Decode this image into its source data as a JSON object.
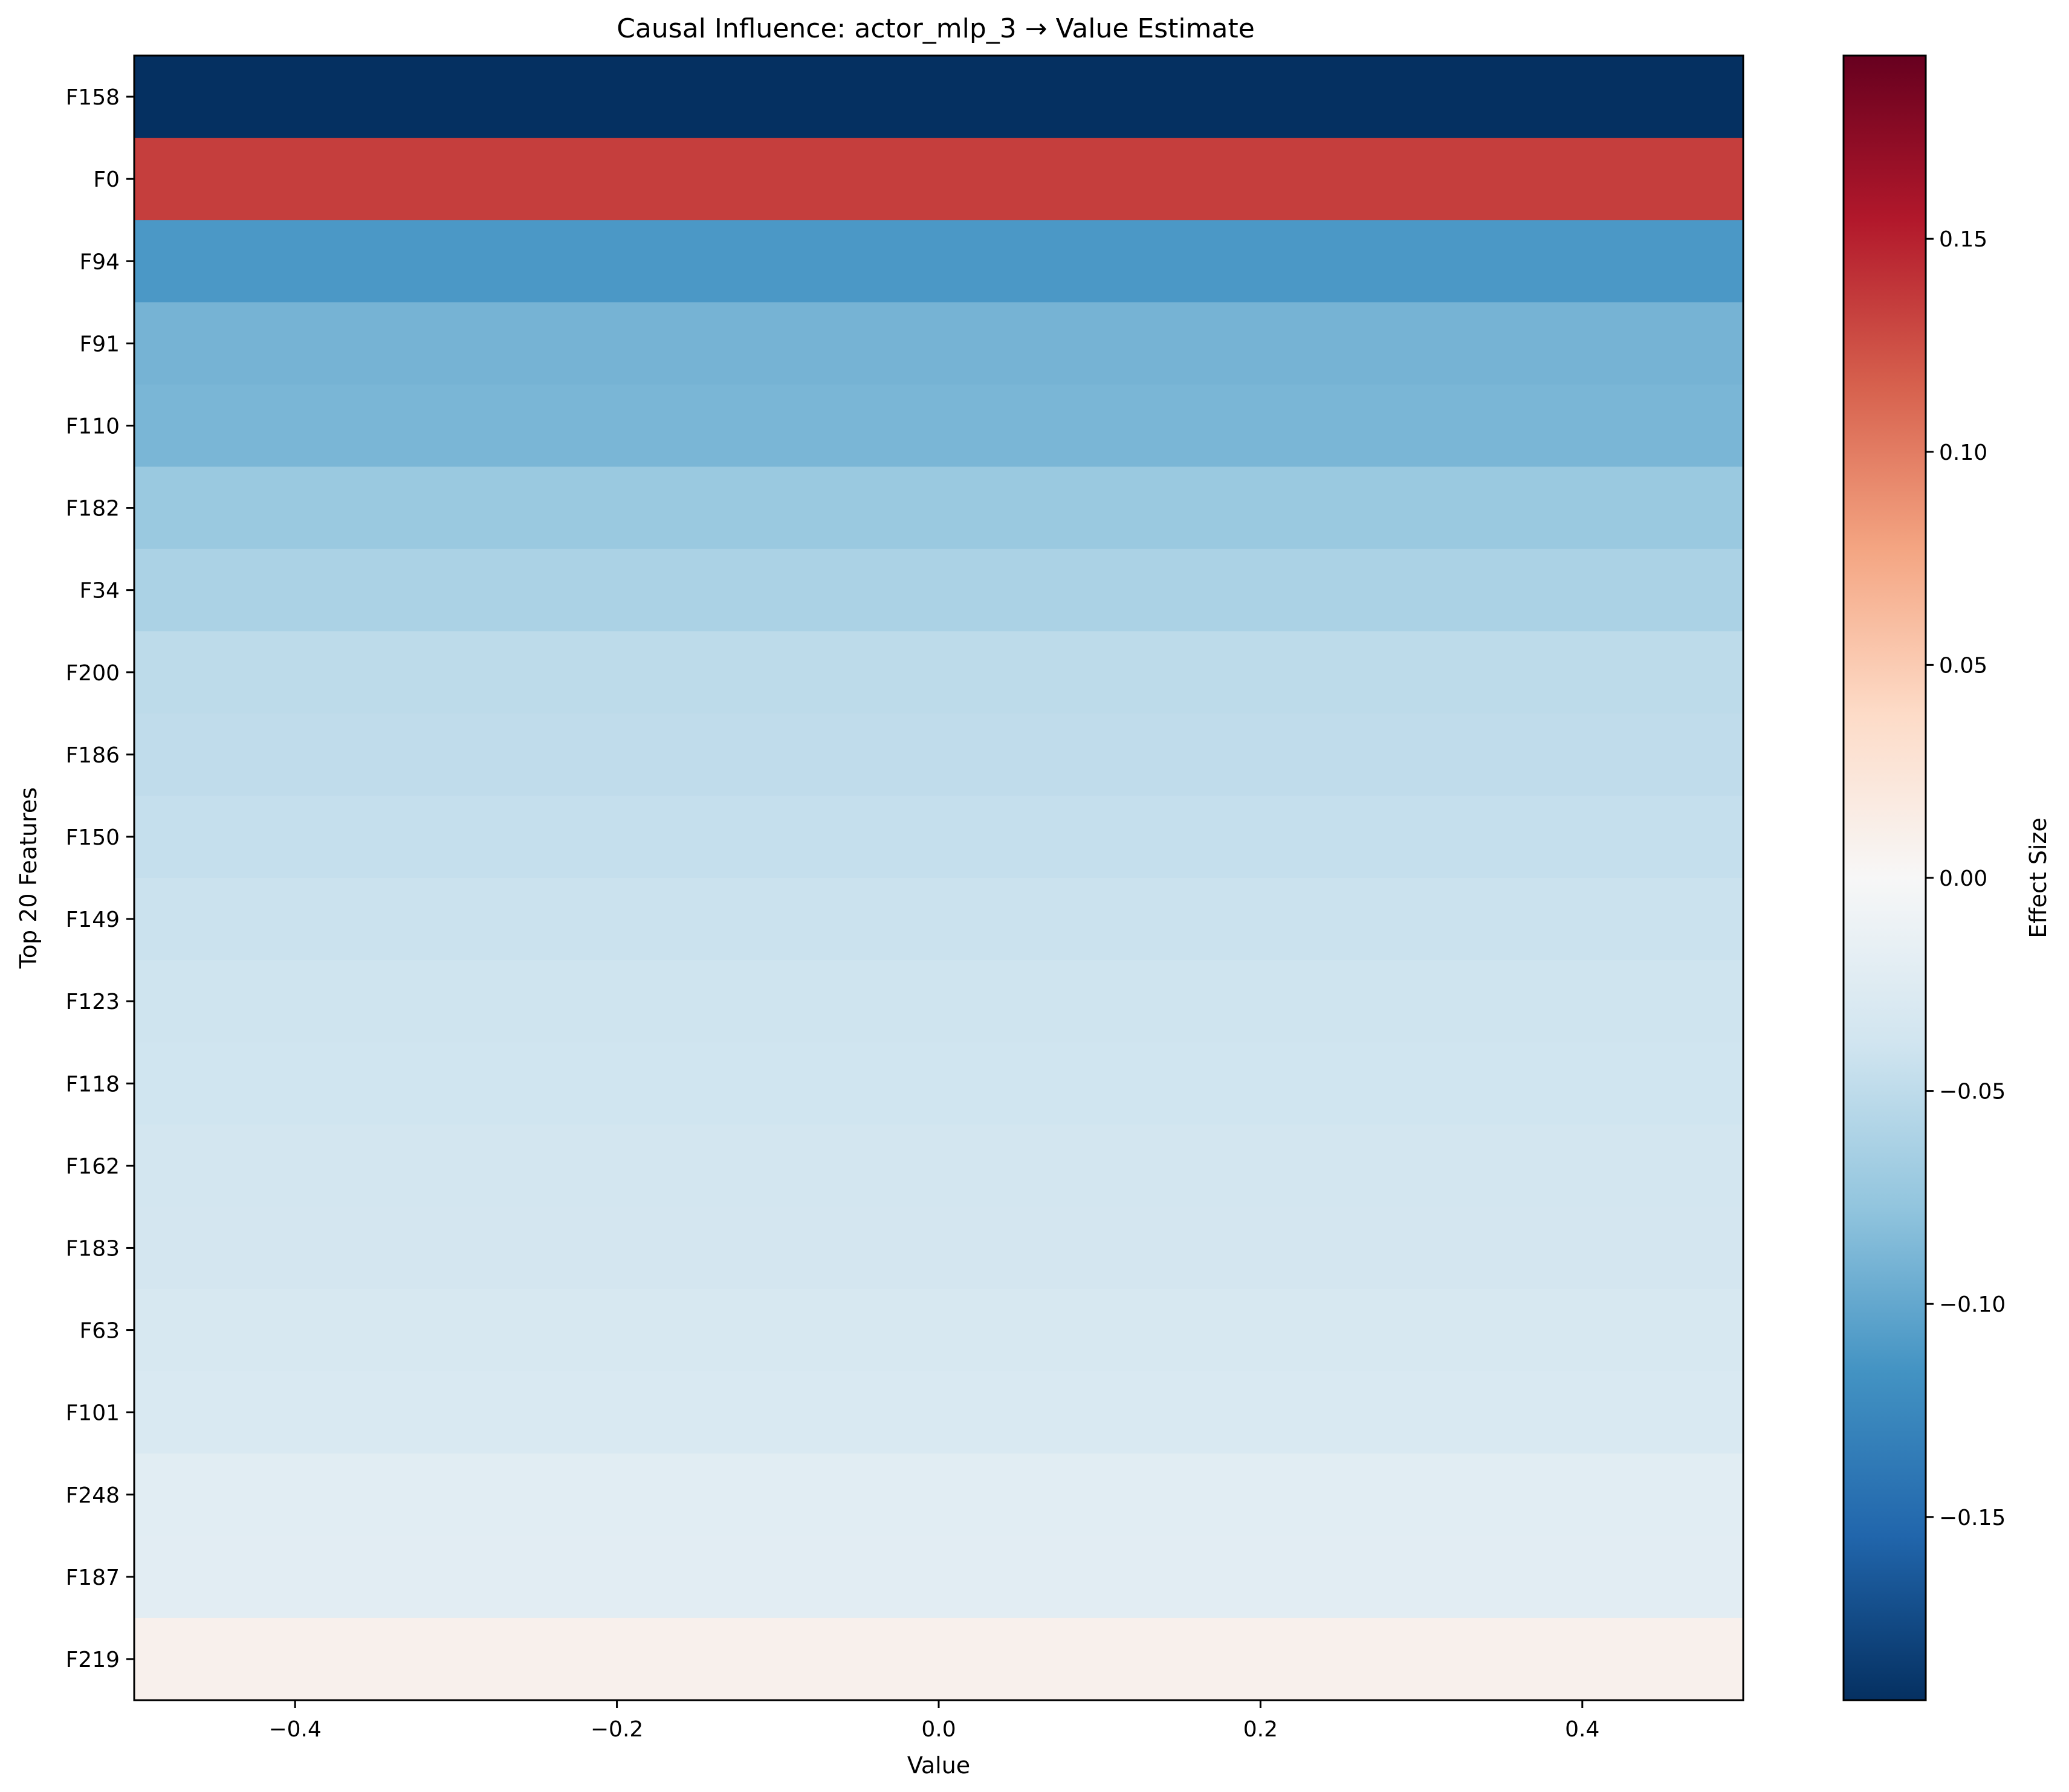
{
  "chart_data": {
    "type": "heatmap",
    "title": "Causal Influence: actor_mlp_3 → Value Estimate",
    "xlabel": "Value",
    "ylabel": "Top 20 Features",
    "xlim": [
      -0.5,
      0.5
    ],
    "x_ticks": [
      -0.4,
      -0.2,
      0.0,
      0.2,
      0.4
    ],
    "x_tick_labels": [
      "−0.4",
      "−0.2",
      "0.0",
      "0.2",
      "0.4"
    ],
    "rows": [
      "F158",
      "F0",
      "F94",
      "F91",
      "F110",
      "F182",
      "F34",
      "F200",
      "F186",
      "F150",
      "F149",
      "F123",
      "F118",
      "F162",
      "F183",
      "F63",
      "F101",
      "F248",
      "F187",
      "F219"
    ],
    "values": [
      -0.193,
      0.134,
      -0.112,
      -0.091,
      -0.089,
      -0.072,
      -0.062,
      -0.051,
      -0.049,
      -0.046,
      -0.042,
      -0.04,
      -0.039,
      -0.037,
      -0.036,
      -0.032,
      -0.03,
      -0.022,
      -0.021,
      0.009
    ],
    "colormap": "RdBu_r",
    "colorbar": {
      "label": "Effect Size",
      "vmin": -0.193,
      "vmax": 0.193,
      "ticks": [
        0.15,
        0.1,
        0.05,
        0.0,
        -0.05,
        -0.1,
        -0.15
      ],
      "tick_labels": [
        "0.15",
        "0.10",
        "0.05",
        "0.00",
        "−0.05",
        "−0.10",
        "−0.15"
      ]
    },
    "grid": false
  }
}
